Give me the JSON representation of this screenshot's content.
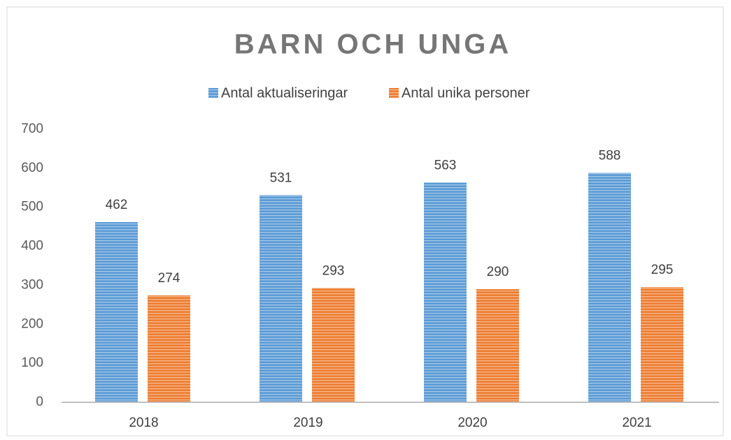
{
  "chart_data": {
    "type": "bar",
    "title": "BARN OCH UNGA",
    "categories": [
      "2018",
      "2019",
      "2020",
      "2021"
    ],
    "series": [
      {
        "name": "Antal aktualiseringar",
        "color": "#5b9bd5",
        "values": [
          462,
          531,
          563,
          588
        ]
      },
      {
        "name": "Antal unika personer",
        "color": "#ed7d31",
        "values": [
          274,
          293,
          290,
          295
        ]
      }
    ],
    "ylim": [
      0,
      700
    ],
    "yticks": [
      0,
      100,
      200,
      300,
      400,
      500,
      600,
      700
    ],
    "grid": false,
    "legend": "top",
    "pattern": "horizontal-stripes"
  }
}
